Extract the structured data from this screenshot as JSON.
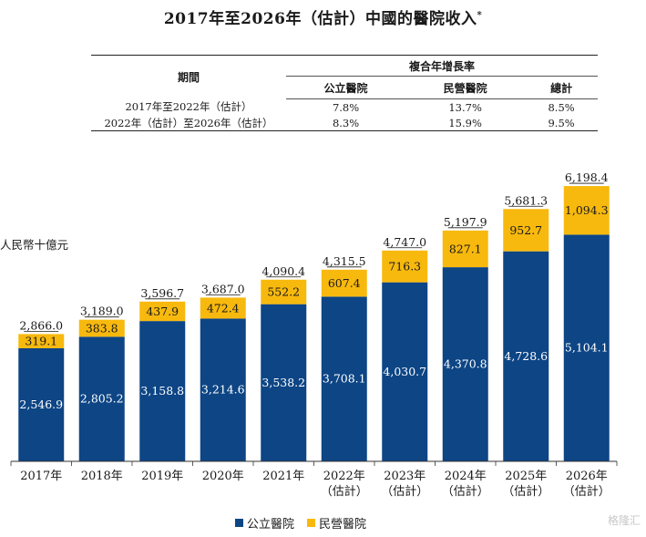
{
  "title": "2017年至2026年（估計）中國的醫院收入",
  "title_mark": "*",
  "cagr_table": {
    "header": "複合年增長率",
    "period_header": "期間",
    "columns": [
      "公立醫院",
      "民營醫院",
      "總計"
    ],
    "rows": [
      {
        "period": "2017年至2022年（估計）",
        "values": [
          "7.8%",
          "13.7%",
          "8.5%"
        ]
      },
      {
        "period": "2022年（估計）至2026年（估計）",
        "values": [
          "8.3%",
          "15.9%",
          "9.5%"
        ]
      }
    ]
  },
  "unit_label": "人民幣十億元",
  "watermark": "格隆汇",
  "colors": {
    "public": "#0d4585",
    "private": "#f8b90e"
  },
  "chart_data": {
    "type": "bar",
    "stacked": true,
    "categories": [
      "2017年",
      "2018年",
      "2019年",
      "2020年",
      "2021年",
      "2022年\n（估計）",
      "2023年\n（估計）",
      "2024年\n（估計）",
      "2025年\n（估計）",
      "2026年\n（估計）"
    ],
    "series": [
      {
        "name": "公立醫院",
        "values": [
          2546.9,
          2805.2,
          3158.8,
          3214.6,
          3538.2,
          3708.1,
          4030.7,
          4370.8,
          4728.6,
          5104.1
        ],
        "labels": [
          "2,546.9",
          "2,805.2",
          "3,158.8",
          "3,214.6",
          "3,538.2",
          "3,708.1",
          "4,030.7",
          "4,370.8",
          "4,728.6",
          "5,104.1"
        ]
      },
      {
        "name": "民營醫院",
        "values": [
          319.1,
          383.8,
          437.9,
          472.4,
          552.2,
          607.4,
          716.3,
          827.1,
          952.7,
          1094.3
        ],
        "labels": [
          "319.1",
          "383.8",
          "437.9",
          "472.4",
          "552.2",
          "607.4",
          "716.3",
          "827.1",
          "952.7",
          "1,094.3"
        ]
      }
    ],
    "totals": [
      2866.0,
      3189.0,
      3596.7,
      3687.0,
      4090.4,
      4315.5,
      4747.0,
      5197.9,
      5681.3,
      6198.4
    ],
    "total_labels": [
      "2,866.0",
      "3,189.0",
      "3,596.7",
      "3,687.0",
      "4,090.4",
      "4,315.5",
      "4,747.0",
      "5,197.9",
      "5,681.3",
      "6,198.4"
    ],
    "ylabel": "人民幣十億元",
    "ylim": [
      0,
      6200
    ],
    "grid": false,
    "legend": "bottom"
  }
}
